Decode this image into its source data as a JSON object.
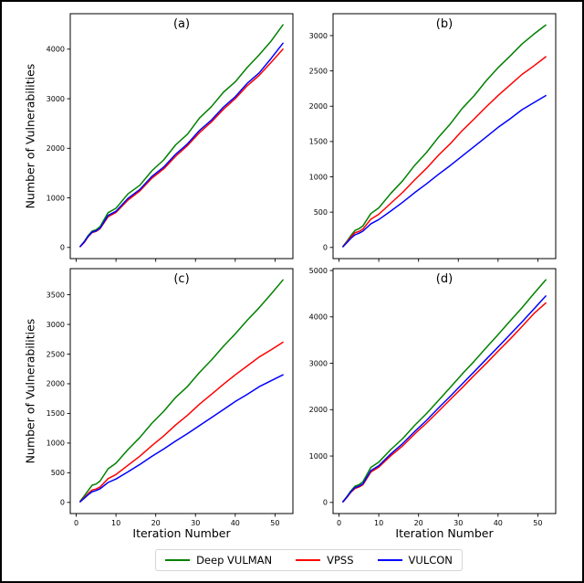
{
  "figure": {
    "background": "#ffffff",
    "border_color": "#000000"
  },
  "axis": {
    "y_label": "Number of Vulnerabilities",
    "x_label": "Iteration Number"
  },
  "legend": {
    "items": [
      {
        "label": "Deep VULMAN",
        "color": "#008000"
      },
      {
        "label": "VPSS",
        "color": "#ff0000"
      },
      {
        "label": "VULCON",
        "color": "#0000ff"
      }
    ]
  },
  "chart_data": [
    {
      "id": "a",
      "type": "line",
      "title": "(a)",
      "xlabel": "",
      "ylabel": "Number of Vulnerabilities",
      "x_ticks": [
        0,
        10,
        20,
        30,
        40,
        50
      ],
      "y_ticks": [
        0,
        1000,
        2000,
        3000,
        4000
      ],
      "xlim": [
        -1.5,
        54.5
      ],
      "ylim": [
        -225,
        4715
      ],
      "grid": false,
      "x": [
        1,
        2,
        3,
        4,
        5,
        6,
        8,
        10,
        13,
        16,
        19,
        22,
        25,
        28,
        31,
        34,
        37,
        40,
        43,
        46,
        49,
        52
      ],
      "series": [
        {
          "name": "Deep VULMAN",
          "color": "#008000",
          "values": [
            20,
            120,
            240,
            330,
            355,
            420,
            700,
            790,
            1080,
            1255,
            1545,
            1765,
            2070,
            2285,
            2610,
            2840,
            3130,
            3340,
            3630,
            3885,
            4160,
            4490
          ]
        },
        {
          "name": "VPSS",
          "color": "#ff0000",
          "values": [
            15,
            100,
            215,
            300,
            325,
            380,
            620,
            705,
            955,
            1140,
            1395,
            1585,
            1840,
            2055,
            2315,
            2530,
            2785,
            3000,
            3260,
            3470,
            3730,
            4000
          ]
        },
        {
          "name": "VULCON",
          "color": "#0000ff",
          "values": [
            20,
            110,
            225,
            310,
            335,
            390,
            645,
            730,
            990,
            1170,
            1430,
            1620,
            1880,
            2090,
            2360,
            2570,
            2830,
            3040,
            3310,
            3520,
            3810,
            4120
          ]
        }
      ]
    },
    {
      "id": "b",
      "type": "line",
      "title": "(b)",
      "xlabel": "",
      "ylabel": "",
      "x_ticks": [
        0,
        10,
        20,
        30,
        40,
        50
      ],
      "y_ticks": [
        0,
        500,
        1000,
        1500,
        2000,
        2500,
        3000
      ],
      "xlim": [
        -1.5,
        54.5
      ],
      "ylim": [
        -158,
        3310
      ],
      "grid": false,
      "x": [
        1,
        2,
        3,
        4,
        5,
        6,
        8,
        10,
        13,
        16,
        19,
        22,
        25,
        28,
        31,
        34,
        37,
        40,
        43,
        46,
        49,
        52
      ],
      "series": [
        {
          "name": "Deep VULMAN",
          "color": "#008000",
          "values": [
            15,
            90,
            170,
            240,
            265,
            305,
            480,
            560,
            765,
            945,
            1160,
            1345,
            1560,
            1750,
            1970,
            2150,
            2360,
            2545,
            2710,
            2880,
            3020,
            3150
          ]
        },
        {
          "name": "VPSS",
          "color": "#ff0000",
          "values": [
            12,
            80,
            150,
            210,
            225,
            260,
            400,
            470,
            625,
            780,
            955,
            1120,
            1305,
            1470,
            1655,
            1820,
            1990,
            2150,
            2300,
            2450,
            2570,
            2700
          ]
        },
        {
          "name": "VULCON",
          "color": "#0000ff",
          "values": [
            10,
            70,
            130,
            180,
            200,
            230,
            335,
            395,
            515,
            640,
            775,
            900,
            1035,
            1160,
            1295,
            1430,
            1565,
            1700,
            1820,
            1950,
            2050,
            2150
          ]
        }
      ]
    },
    {
      "id": "c",
      "type": "line",
      "title": "(c)",
      "xlabel": "Iteration Number",
      "ylabel": "Number of Vulnerabilities",
      "x_ticks": [
        0,
        10,
        20,
        30,
        40,
        50
      ],
      "y_ticks": [
        0,
        500,
        1000,
        1500,
        2000,
        2500,
        3000,
        3500
      ],
      "xlim": [
        -1.5,
        54.5
      ],
      "ylim": [
        -188,
        3940
      ],
      "grid": false,
      "x": [
        1,
        2,
        3,
        4,
        5,
        6,
        8,
        10,
        13,
        16,
        19,
        22,
        25,
        28,
        31,
        34,
        37,
        40,
        43,
        46,
        49,
        52
      ],
      "series": [
        {
          "name": "Deep VULMAN",
          "color": "#008000",
          "values": [
            20,
            110,
            200,
            290,
            310,
            360,
            565,
            660,
            890,
            1095,
            1330,
            1535,
            1770,
            1955,
            2190,
            2400,
            2630,
            2840,
            3070,
            3280,
            3510,
            3750
          ]
        },
        {
          "name": "VPSS",
          "color": "#ff0000",
          "values": [
            12,
            80,
            150,
            210,
            225,
            260,
            400,
            470,
            625,
            780,
            955,
            1120,
            1305,
            1470,
            1655,
            1820,
            1990,
            2150,
            2300,
            2450,
            2570,
            2700
          ]
        },
        {
          "name": "VULCON",
          "color": "#0000ff",
          "values": [
            10,
            70,
            130,
            180,
            200,
            230,
            335,
            395,
            515,
            640,
            775,
            900,
            1035,
            1160,
            1295,
            1430,
            1565,
            1700,
            1820,
            1950,
            2050,
            2150
          ]
        }
      ]
    },
    {
      "id": "d",
      "type": "line",
      "title": "(d)",
      "xlabel": "Iteration Number",
      "ylabel": "",
      "x_ticks": [
        0,
        10,
        20,
        30,
        40,
        50
      ],
      "y_ticks": [
        0,
        1000,
        2000,
        3000,
        4000,
        5000
      ],
      "xlim": [
        -1.5,
        54.5
      ],
      "ylim": [
        -240,
        5040
      ],
      "grid": false,
      "x": [
        1,
        2,
        3,
        4,
        5,
        6,
        8,
        10,
        13,
        16,
        19,
        22,
        25,
        28,
        31,
        34,
        37,
        40,
        43,
        46,
        49,
        52
      ],
      "series": [
        {
          "name": "Deep VULMAN",
          "color": "#008000",
          "values": [
            20,
            130,
            250,
            350,
            380,
            445,
            755,
            870,
            1140,
            1375,
            1660,
            1915,
            2200,
            2480,
            2770,
            3045,
            3335,
            3615,
            3910,
            4195,
            4500,
            4800
          ]
        },
        {
          "name": "VPSS",
          "color": "#ff0000",
          "values": [
            10,
            110,
            220,
            300,
            330,
            380,
            655,
            760,
            1005,
            1220,
            1475,
            1710,
            1965,
            2220,
            2475,
            2740,
            2995,
            3260,
            3520,
            3790,
            4070,
            4300
          ]
        },
        {
          "name": "VULCON",
          "color": "#0000ff",
          "values": [
            15,
            120,
            230,
            320,
            350,
            400,
            685,
            790,
            1045,
            1270,
            1525,
            1770,
            2035,
            2290,
            2555,
            2820,
            3085,
            3350,
            3620,
            3890,
            4170,
            4450
          ]
        }
      ]
    }
  ]
}
